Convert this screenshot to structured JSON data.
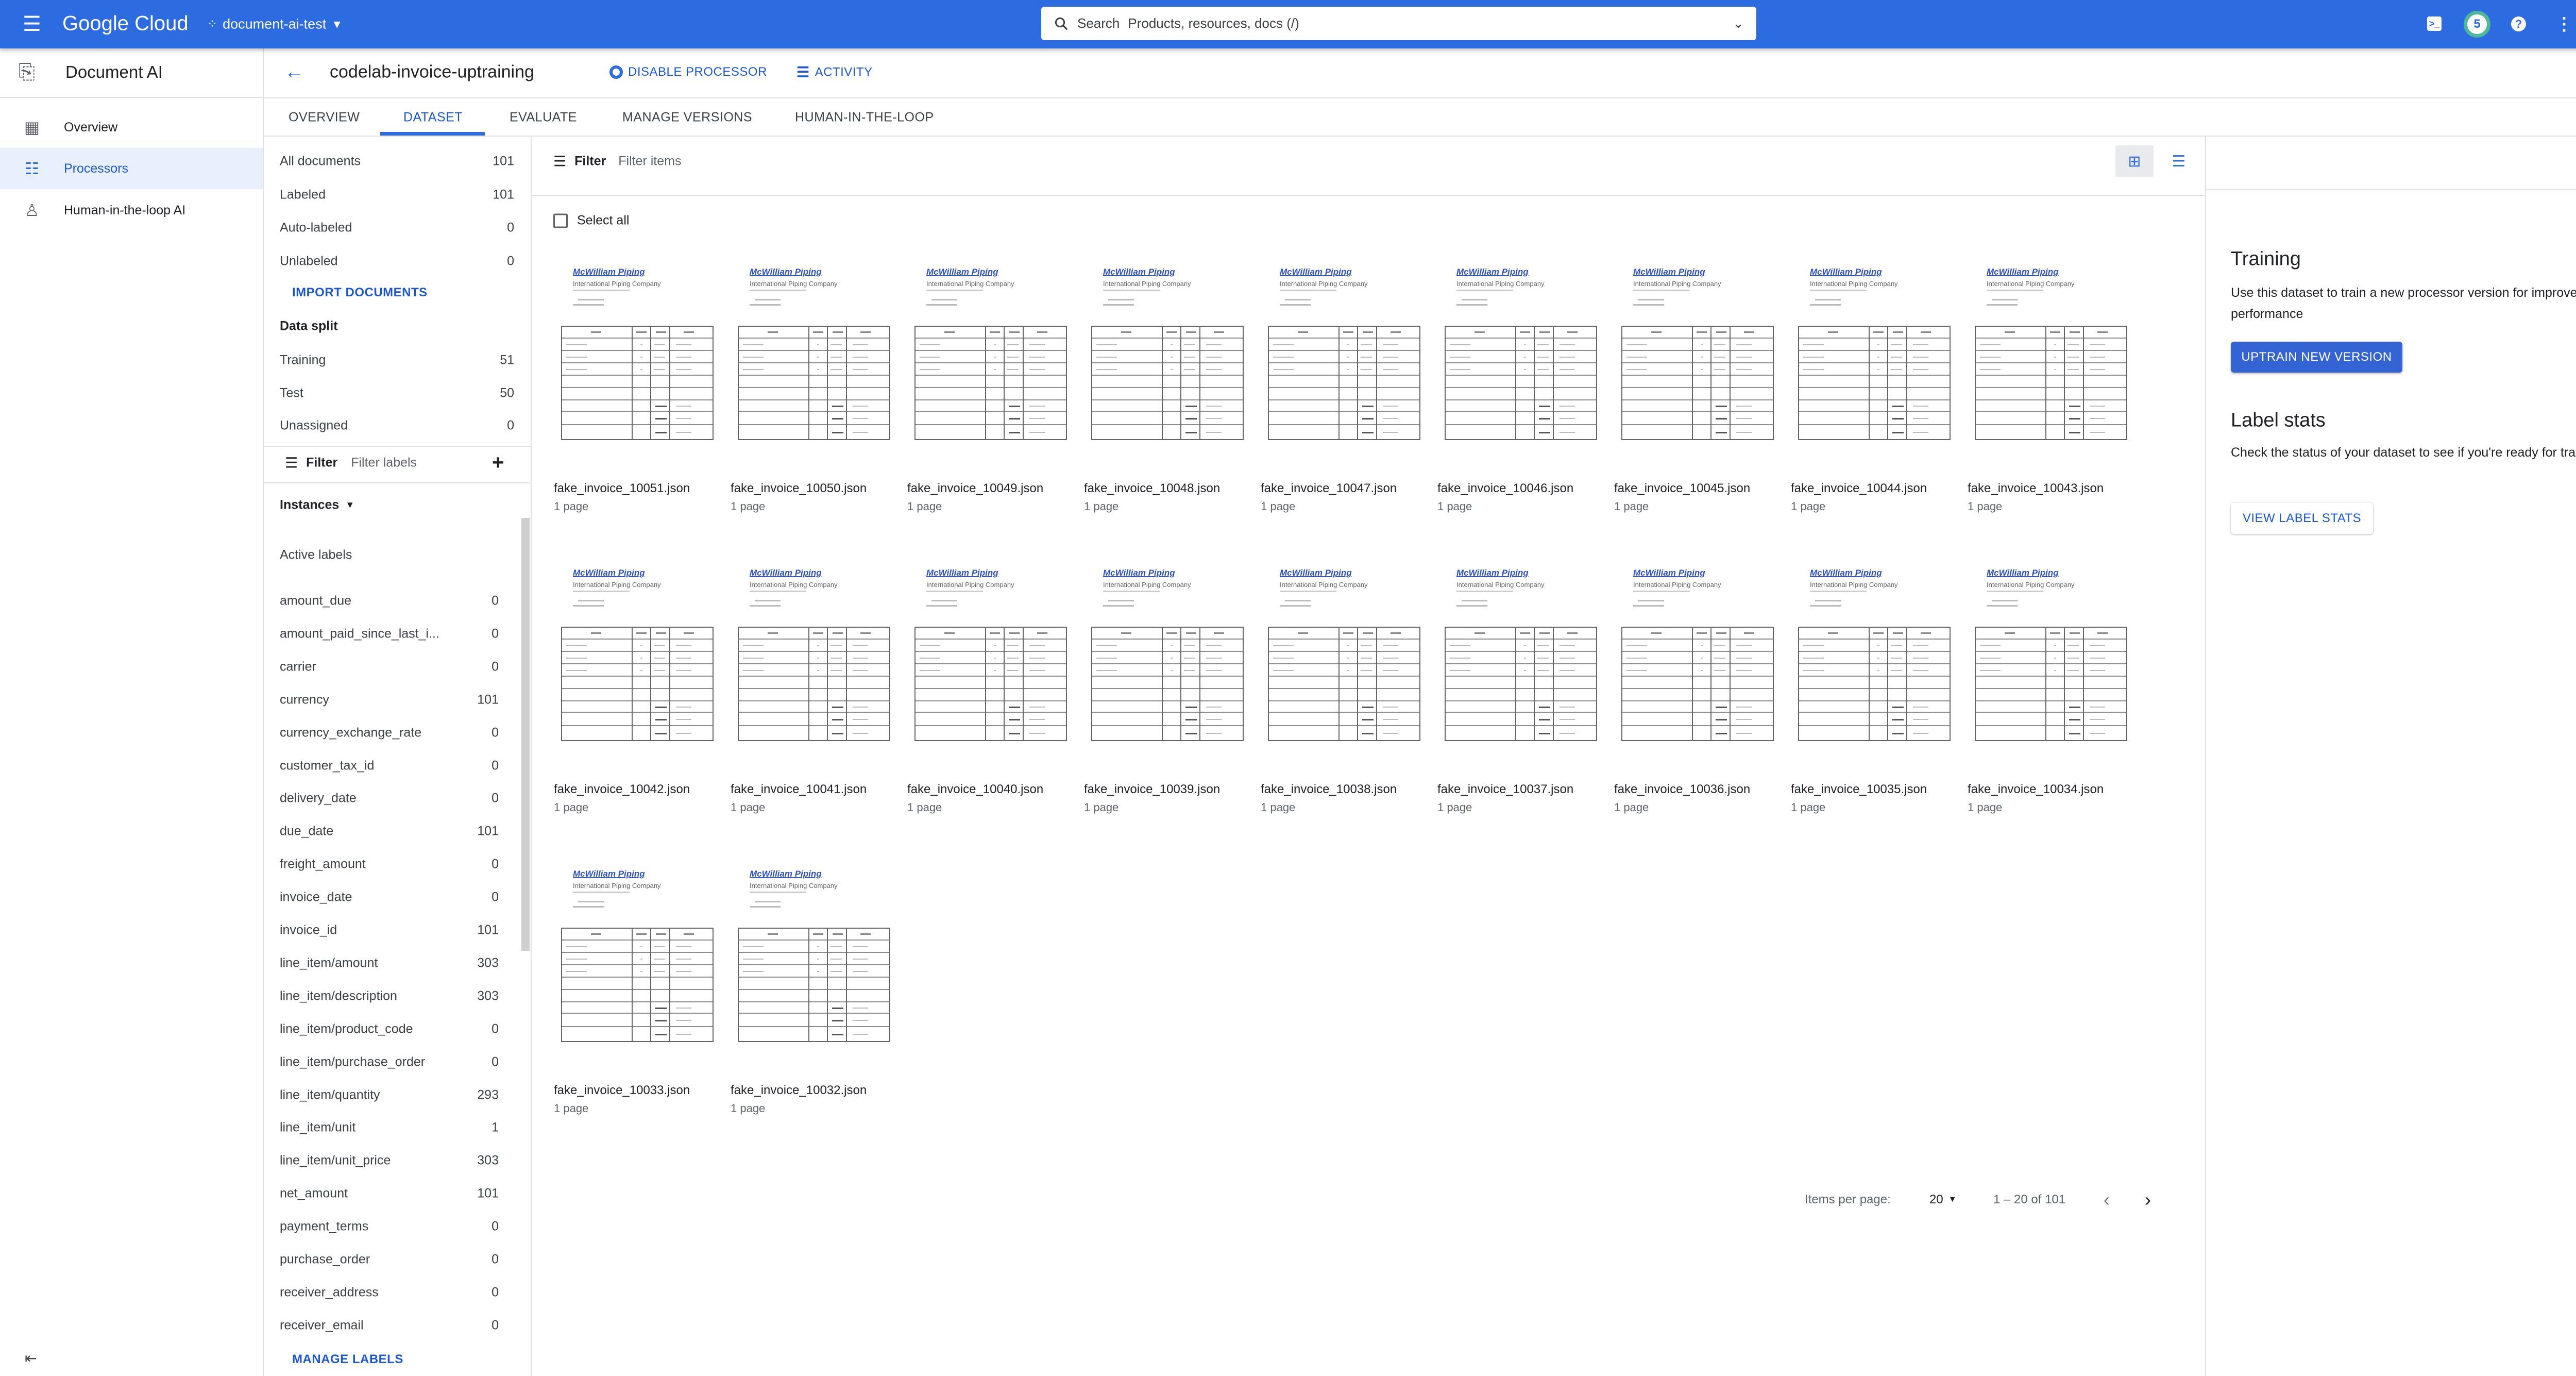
{
  "header": {
    "brand": "Google Cloud",
    "project": "document-ai-test",
    "search_label": "Search",
    "search_placeholder": "Products, resources, docs (/)",
    "notifications_count": "5",
    "brand_color": "#2d6ce0",
    "icons": [
      "menu-icon",
      "project-icon",
      "search-icon",
      "terminal-icon",
      "help-icon",
      "more-vert-icon",
      "avatar"
    ]
  },
  "nav": {
    "product": "Document AI",
    "items": [
      {
        "label": "Overview",
        "icon": "dashboard-icon"
      },
      {
        "label": "Processors",
        "icon": "processors-icon",
        "active": true
      },
      {
        "label": "Human-in-the-loop AI",
        "icon": "human-in-loop-icon"
      }
    ]
  },
  "title_bar": {
    "title": "codelab-invoice-uptraining",
    "disable_label": "DISABLE PROCESSOR",
    "activity_label": "ACTIVITY"
  },
  "tabs": [
    {
      "label": "OVERVIEW"
    },
    {
      "label": "DATASET",
      "active": true
    },
    {
      "label": "EVALUATE"
    },
    {
      "label": "MANAGE VERSIONS"
    },
    {
      "label": "HUMAN-IN-THE-LOOP"
    }
  ],
  "dataset_panel": {
    "counts": [
      {
        "label": "All documents",
        "value": "101"
      },
      {
        "label": "Labeled",
        "value": "101"
      },
      {
        "label": "Auto-labeled",
        "value": "0"
      },
      {
        "label": "Unlabeled",
        "value": "0"
      }
    ],
    "import_label": "IMPORT DOCUMENTS",
    "split_heading": "Data split",
    "split": [
      {
        "label": "Training",
        "value": "51"
      },
      {
        "label": "Test",
        "value": "50"
      },
      {
        "label": "Unassigned",
        "value": "0"
      }
    ],
    "filter_label": "Filter",
    "filter_placeholder": "Filter labels",
    "instances_label": "Instances",
    "active_labels_heading": "Active labels",
    "labels": [
      {
        "name": "amount_due",
        "count": "0"
      },
      {
        "name": "amount_paid_since_last_i...",
        "count": "0"
      },
      {
        "name": "carrier",
        "count": "0"
      },
      {
        "name": "currency",
        "count": "101"
      },
      {
        "name": "currency_exchange_rate",
        "count": "0"
      },
      {
        "name": "customer_tax_id",
        "count": "0"
      },
      {
        "name": "delivery_date",
        "count": "0"
      },
      {
        "name": "due_date",
        "count": "101"
      },
      {
        "name": "freight_amount",
        "count": "0"
      },
      {
        "name": "invoice_date",
        "count": "0"
      },
      {
        "name": "invoice_id",
        "count": "101"
      },
      {
        "name": "line_item/amount",
        "count": "303"
      },
      {
        "name": "line_item/description",
        "count": "303"
      },
      {
        "name": "line_item/product_code",
        "count": "0"
      },
      {
        "name": "line_item/purchase_order",
        "count": "0"
      },
      {
        "name": "line_item/quantity",
        "count": "293"
      },
      {
        "name": "line_item/unit",
        "count": "1"
      },
      {
        "name": "line_item/unit_price",
        "count": "303"
      },
      {
        "name": "net_amount",
        "count": "101"
      },
      {
        "name": "payment_terms",
        "count": "0"
      },
      {
        "name": "purchase_order",
        "count": "0"
      },
      {
        "name": "receiver_address",
        "count": "0"
      },
      {
        "name": "receiver_email",
        "count": "0"
      }
    ],
    "manage_labels": "MANAGE LABELS"
  },
  "documents": {
    "filter_label": "Filter",
    "filter_placeholder": "Filter items",
    "select_all": "Select all",
    "view_mode": "grid",
    "thumbnail": {
      "company": "McWilliam Piping",
      "subtitle": "International Piping Company"
    },
    "items": [
      {
        "name": "fake_invoice_10051.json",
        "pages": "1 page"
      },
      {
        "name": "fake_invoice_10050.json",
        "pages": "1 page"
      },
      {
        "name": "fake_invoice_10049.json",
        "pages": "1 page"
      },
      {
        "name": "fake_invoice_10048.json",
        "pages": "1 page"
      },
      {
        "name": "fake_invoice_10047.json",
        "pages": "1 page"
      },
      {
        "name": "fake_invoice_10046.json",
        "pages": "1 page"
      },
      {
        "name": "fake_invoice_10045.json",
        "pages": "1 page"
      },
      {
        "name": "fake_invoice_10044.json",
        "pages": "1 page"
      },
      {
        "name": "fake_invoice_10043.json",
        "pages": "1 page"
      },
      {
        "name": "fake_invoice_10042.json",
        "pages": "1 page"
      },
      {
        "name": "fake_invoice_10041.json",
        "pages": "1 page"
      },
      {
        "name": "fake_invoice_10040.json",
        "pages": "1 page"
      },
      {
        "name": "fake_invoice_10039.json",
        "pages": "1 page"
      },
      {
        "name": "fake_invoice_10038.json",
        "pages": "1 page"
      },
      {
        "name": "fake_invoice_10037.json",
        "pages": "1 page"
      },
      {
        "name": "fake_invoice_10036.json",
        "pages": "1 page"
      },
      {
        "name": "fake_invoice_10035.json",
        "pages": "1 page"
      },
      {
        "name": "fake_invoice_10034.json",
        "pages": "1 page"
      },
      {
        "name": "fake_invoice_10033.json",
        "pages": "1 page"
      },
      {
        "name": "fake_invoice_10032.json",
        "pages": "1 page"
      }
    ],
    "pagination": {
      "items_per_page_label": "Items per page:",
      "items_per_page": "20",
      "range": "1 – 20 of 101"
    }
  },
  "side_panel": {
    "training_heading": "Training",
    "training_desc": "Use this dataset to train a new processor version for improved performance",
    "uptrain_button": "UPTRAIN NEW VERSION",
    "label_stats_heading": "Label stats",
    "label_stats_desc": "Check the status of your dataset to see if you're ready for training",
    "view_stats_button": "VIEW LABEL STATS"
  }
}
